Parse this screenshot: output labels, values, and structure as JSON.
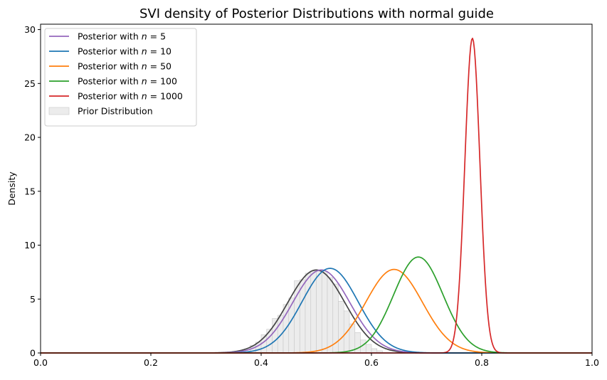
{
  "chart_data": {
    "type": "line",
    "title": "SVI density of Posterior Distributions with normal guide",
    "xlabel": "",
    "ylabel": "Density",
    "xlim": [
      0.0,
      1.0
    ],
    "ylim": [
      0,
      30.5
    ],
    "grid": false,
    "legend_position": "top-left",
    "x_ticks": [
      {
        "value": 0.0,
        "label": "0.0"
      },
      {
        "value": 0.2,
        "label": "0.2"
      },
      {
        "value": 0.4,
        "label": "0.4"
      },
      {
        "value": 0.6,
        "label": "0.6"
      },
      {
        "value": 0.8,
        "label": "0.8"
      },
      {
        "value": 1.0,
        "label": "1.0"
      }
    ],
    "y_ticks": [
      {
        "value": 0,
        "label": "0"
      },
      {
        "value": 5,
        "label": "5"
      },
      {
        "value": 10,
        "label": "10"
      },
      {
        "value": 15,
        "label": "15"
      },
      {
        "value": 20,
        "label": "20"
      },
      {
        "value": 25,
        "label": "25"
      },
      {
        "value": 30,
        "label": "30"
      }
    ],
    "series": [
      {
        "name": "Posterior with n = 5",
        "label_prefix": "Posterior with ",
        "label_n": "5",
        "color": "#9467bd",
        "mean": 0.509,
        "peak": 7.7
      },
      {
        "name": "Posterior with n = 10",
        "label_prefix": "Posterior with ",
        "label_n": "10",
        "color": "#1f77b4",
        "mean": 0.525,
        "peak": 7.85
      },
      {
        "name": "Posterior with n = 50",
        "label_prefix": "Posterior with ",
        "label_n": "50",
        "color": "#ff7f0e",
        "mean": 0.641,
        "peak": 7.75
      },
      {
        "name": "Posterior with n = 100",
        "label_prefix": "Posterior with ",
        "label_n": "100",
        "color": "#2ca02c",
        "mean": 0.685,
        "peak": 8.9
      },
      {
        "name": "Posterior with n = 1000",
        "label_prefix": "Posterior with ",
        "label_n": "1000",
        "color": "#d62728",
        "mean": 0.783,
        "peak": 29.2
      }
    ],
    "prior": {
      "name": "Prior Distribution",
      "hist_color": "#ececec",
      "hist_edge": "#c8c8c8",
      "kde_color": "#444444",
      "mean": 0.5,
      "peak": 7.7,
      "bins": [
        {
          "x0": 0.38,
          "x1": 0.39,
          "density": 0.7
        },
        {
          "x0": 0.39,
          "x1": 0.4,
          "density": 1.0
        },
        {
          "x0": 0.4,
          "x1": 0.41,
          "density": 1.7
        },
        {
          "x0": 0.41,
          "x1": 0.42,
          "density": 2.2
        },
        {
          "x0": 0.42,
          "x1": 0.43,
          "density": 3.2
        },
        {
          "x0": 0.43,
          "x1": 0.44,
          "density": 3.5
        },
        {
          "x0": 0.44,
          "x1": 0.45,
          "density": 4.5
        },
        {
          "x0": 0.45,
          "x1": 0.46,
          "density": 5.1
        },
        {
          "x0": 0.46,
          "x1": 0.47,
          "density": 6.7
        },
        {
          "x0": 0.47,
          "x1": 0.48,
          "density": 6.8
        },
        {
          "x0": 0.48,
          "x1": 0.49,
          "density": 7.4
        },
        {
          "x0": 0.49,
          "x1": 0.5,
          "density": 7.6
        },
        {
          "x0": 0.5,
          "x1": 0.51,
          "density": 7.6
        },
        {
          "x0": 0.51,
          "x1": 0.52,
          "density": 7.6
        },
        {
          "x0": 0.52,
          "x1": 0.53,
          "density": 7.0
        },
        {
          "x0": 0.53,
          "x1": 0.54,
          "density": 6.4
        },
        {
          "x0": 0.54,
          "x1": 0.55,
          "density": 4.8
        },
        {
          "x0": 0.55,
          "x1": 0.56,
          "density": 3.9
        },
        {
          "x0": 0.56,
          "x1": 0.57,
          "density": 2.7
        },
        {
          "x0": 0.57,
          "x1": 0.58,
          "density": 1.9
        },
        {
          "x0": 0.58,
          "x1": 0.59,
          "density": 1.2
        },
        {
          "x0": 0.59,
          "x1": 0.6,
          "density": 0.8
        },
        {
          "x0": 0.6,
          "x1": 0.61,
          "density": 0.4
        },
        {
          "x0": 0.61,
          "x1": 0.62,
          "density": 0.2
        }
      ]
    }
  }
}
